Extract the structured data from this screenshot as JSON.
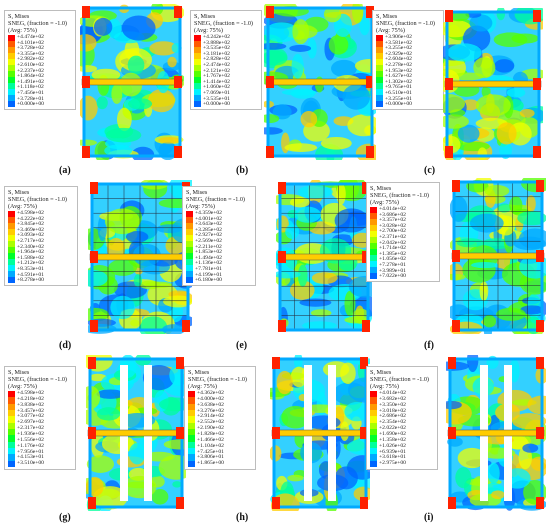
{
  "legend_title": [
    "S, Mises",
    "SNEG, (fraction = -1.0)",
    "(Avg: 75%)"
  ],
  "colors": [
    "#ff0000",
    "#ff5a00",
    "#ff9900",
    "#ffcc00",
    "#f2ff00",
    "#aaff00",
    "#55ff00",
    "#00ff2a",
    "#00ff9c",
    "#00f2ff",
    "#00aaff",
    "#0066ff",
    "#0000ff"
  ],
  "panels": [
    {
      "caption": "(a)",
      "values": [
        "+4.474e+02",
        "+4.101e+02",
        "+3.728e+02",
        "+3.355e+02",
        "+2.982e+02",
        "+2.610e+02",
        "+2.237e+02",
        "+1.864e+02",
        "+1.491e+02",
        "+1.118e+02",
        "+7.456e+01",
        "+3.728e+01",
        "+0.000e+00"
      ]
    },
    {
      "caption": "(b)",
      "values": [
        "+4.242e+02",
        "+3.888e+02",
        "+3.535e+02",
        "+3.181e+02",
        "+2.828e+02",
        "+2.474e+02",
        "+2.121e+02",
        "+1.767e+02",
        "+1.414e+02",
        "+1.060e+02",
        "+7.069e+01",
        "+3.535e+01",
        "+0.000e+00"
      ]
    },
    {
      "caption": "(c)",
      "values": [
        "+3.906e+02",
        "+3.581e+02",
        "+3.255e+02",
        "+2.929e+02",
        "+2.604e+02",
        "+2.278e+02",
        "+1.953e+02",
        "+1.627e+02",
        "+1.302e+02",
        "+9.765e+01",
        "+6.510e+01",
        "+3.255e+01",
        "+0.000e+00"
      ]
    },
    {
      "caption": "(d)",
      "values": [
        "+4.598e+02",
        "+4.222e+02",
        "+3.845e+02",
        "+3.469e+02",
        "+3.093e+02",
        "+2.717e+02",
        "+2.340e+02",
        "+1.964e+02",
        "+1.588e+02",
        "+1.212e+02",
        "+8.353e+01",
        "+4.591e+01",
        "+8.278e+00"
      ]
    },
    {
      "caption": "(e)",
      "values": [
        "+4.359e+02",
        "+4.001e+02",
        "+3.643e+02",
        "+3.285e+02",
        "+2.927e+02",
        "+2.569e+02",
        "+2.211e+02",
        "+1.853e+02",
        "+1.494e+02",
        "+1.136e+02",
        "+7.781e+01",
        "+4.199e+01",
        "+6.180e+00"
      ]
    },
    {
      "caption": "(f)",
      "values": [
        "+4.014e+02",
        "+3.686e+02",
        "+3.357e+02",
        "+3.028e+02",
        "+2.700e+02",
        "+2.371e+02",
        "+2.042e+02",
        "+1.714e+02",
        "+1.385e+02",
        "+1.056e+02",
        "+7.278e+01",
        "+3.989e+01",
        "+7.022e+00"
      ]
    },
    {
      "caption": "(g)",
      "values": [
        "+4.598e+02",
        "+4.218e+02",
        "+3.838e+02",
        "+3.457e+02",
        "+3.077e+02",
        "+2.697e+02",
        "+2.317e+02",
        "+1.936e+02",
        "+1.556e+02",
        "+1.176e+02",
        "+7.956e+01",
        "+4.153e+01",
        "+3.510e+00"
      ]
    },
    {
      "caption": "(h)",
      "values": [
        "+4.362e+02",
        "+4.000e+02",
        "+3.638e+02",
        "+3.276e+02",
        "+2.914e+02",
        "+2.552e+02",
        "+2.190e+02",
        "+1.828e+02",
        "+1.466e+02",
        "+1.104e+02",
        "+7.425e+01",
        "+3.806e+01",
        "+1.865e+00"
      ]
    },
    {
      "caption": "(i)",
      "values": [
        "+4.014e+02",
        "+3.682e+02",
        "+3.350e+02",
        "+3.018e+02",
        "+2.686e+02",
        "+2.354e+02",
        "+2.022e+02",
        "+1.690e+02",
        "+1.358e+02",
        "+1.026e+02",
        "+6.939e+01",
        "+3.618e+01",
        "+2.975e+00"
      ]
    }
  ]
}
